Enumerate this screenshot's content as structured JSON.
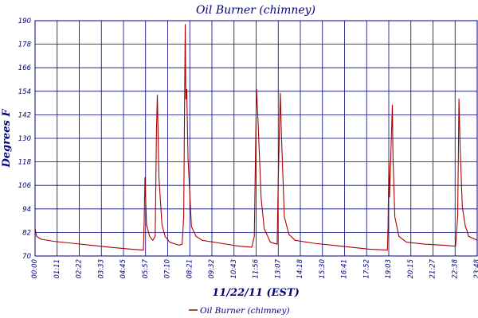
{
  "chart_data": {
    "type": "line",
    "title": "Oil Burner (chimney)",
    "xlabel": "11/22/11 (EST)",
    "ylabel": "Degrees F",
    "ylim": [
      70,
      190
    ],
    "xlim": [
      "00:00",
      "23:48"
    ],
    "y_ticks": [
      70,
      82,
      94,
      106,
      118,
      130,
      142,
      154,
      166,
      178,
      190
    ],
    "x_ticks": [
      "00:00",
      "01:11",
      "02:22",
      "03:33",
      "04:45",
      "05:57",
      "07:10",
      "08:21",
      "09:32",
      "10:43",
      "11:56",
      "13:07",
      "14:18",
      "15:30",
      "16:41",
      "17:52",
      "19:03",
      "20:15",
      "21:27",
      "22:38",
      "23:48"
    ],
    "grid": true,
    "legend": "bottom",
    "series": [
      {
        "name": "Oil Burner (chimney)",
        "color": "#aa0000",
        "points": [
          [
            "00:00",
            84
          ],
          [
            "00:05",
            80
          ],
          [
            "00:20",
            78.5
          ],
          [
            "01:00",
            77.5
          ],
          [
            "02:00",
            76.5
          ],
          [
            "03:00",
            75.5
          ],
          [
            "04:00",
            74.5
          ],
          [
            "05:10",
            73.5
          ],
          [
            "05:50",
            73
          ],
          [
            "05:52",
            85
          ],
          [
            "05:55",
            110
          ],
          [
            "05:57",
            100
          ],
          [
            "06:00",
            86
          ],
          [
            "06:10",
            80
          ],
          [
            "06:20",
            78
          ],
          [
            "06:28",
            80
          ],
          [
            "06:32",
            134
          ],
          [
            "06:35",
            152
          ],
          [
            "06:40",
            110
          ],
          [
            "06:50",
            86
          ],
          [
            "07:00",
            80
          ],
          [
            "07:15",
            77
          ],
          [
            "07:45",
            75.5
          ],
          [
            "07:55",
            76
          ],
          [
            "08:00",
            90
          ],
          [
            "08:03",
            148
          ],
          [
            "08:05",
            188
          ],
          [
            "08:07",
            150
          ],
          [
            "08:10",
            155
          ],
          [
            "08:14",
            120
          ],
          [
            "08:25",
            85
          ],
          [
            "08:40",
            80
          ],
          [
            "09:00",
            78
          ],
          [
            "10:00",
            76.5
          ],
          [
            "11:00",
            75
          ],
          [
            "11:40",
            74.5
          ],
          [
            "11:48",
            80
          ],
          [
            "11:55",
            155
          ],
          [
            "12:00",
            140
          ],
          [
            "12:10",
            100
          ],
          [
            "12:20",
            84
          ],
          [
            "12:40",
            77
          ],
          [
            "13:02",
            76
          ],
          [
            "13:05",
            105
          ],
          [
            "13:12",
            153
          ],
          [
            "13:16",
            130
          ],
          [
            "13:25",
            90
          ],
          [
            "13:40",
            81
          ],
          [
            "14:00",
            78
          ],
          [
            "15:00",
            76.5
          ],
          [
            "16:00",
            75.5
          ],
          [
            "17:00",
            74.5
          ],
          [
            "18:00",
            73.5
          ],
          [
            "18:58",
            73
          ],
          [
            "19:00",
            85
          ],
          [
            "19:03",
            118
          ],
          [
            "19:05",
            100
          ],
          [
            "19:10",
            127
          ],
          [
            "19:14",
            147
          ],
          [
            "19:16",
            120
          ],
          [
            "19:22",
            90
          ],
          [
            "19:35",
            80
          ],
          [
            "20:00",
            77
          ],
          [
            "21:00",
            76
          ],
          [
            "22:00",
            75.5
          ],
          [
            "22:38",
            75
          ],
          [
            "22:45",
            90
          ],
          [
            "22:49",
            150
          ],
          [
            "22:53",
            125
          ],
          [
            "23:00",
            95
          ],
          [
            "23:10",
            85
          ],
          [
            "23:15",
            83
          ],
          [
            "23:20",
            80
          ],
          [
            "23:35",
            79
          ],
          [
            "23:48",
            78
          ]
        ]
      }
    ]
  }
}
